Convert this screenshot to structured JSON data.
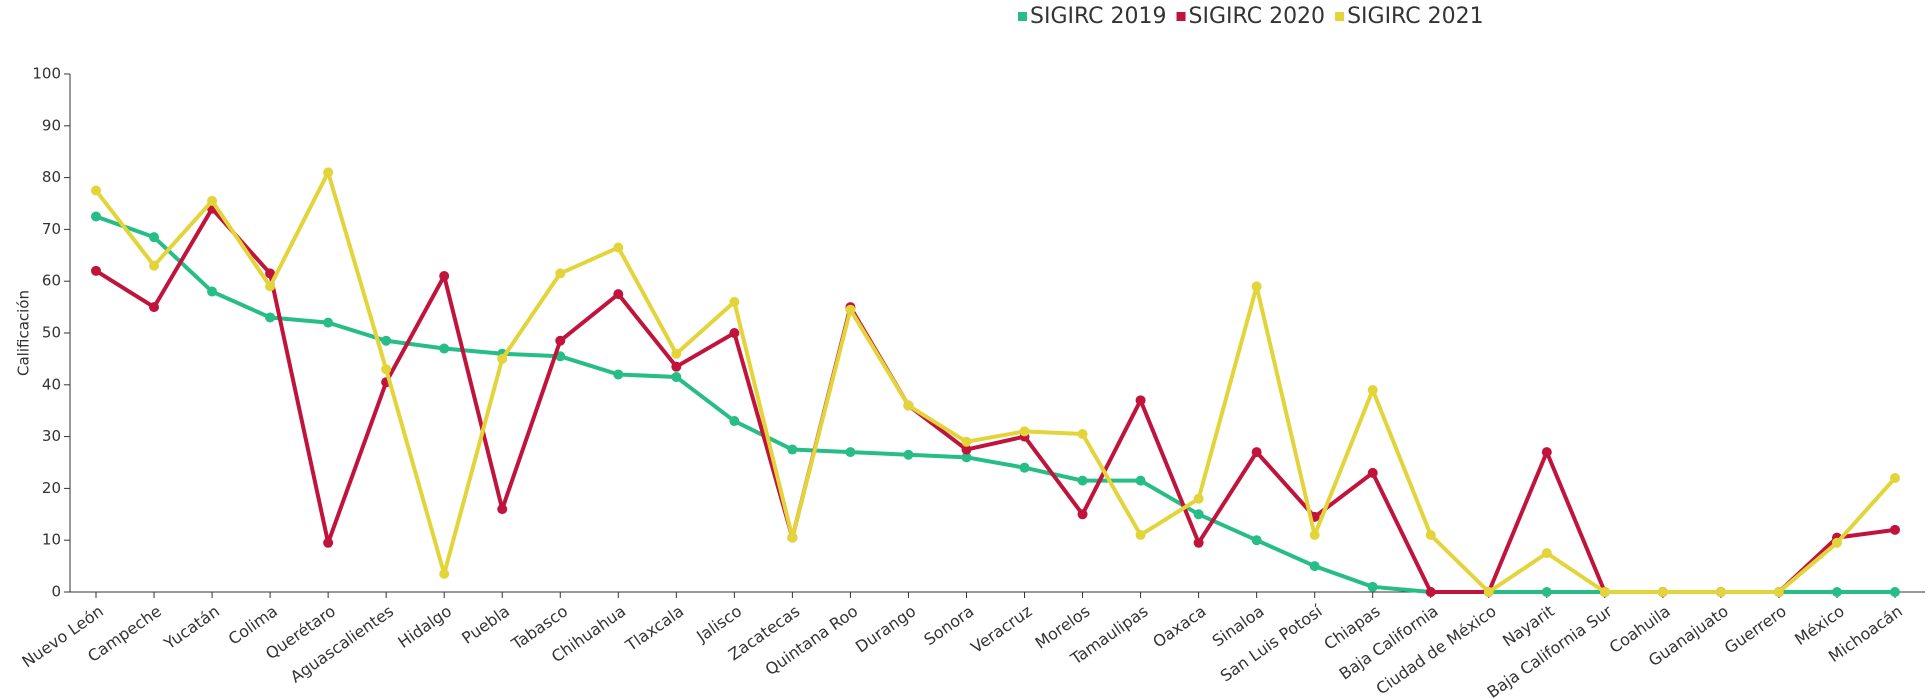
{
  "chart_data": {
    "type": "line",
    "y_label": "Calificación",
    "categories": [
      "Nuevo León",
      "Campeche",
      "Yucatán",
      "Colima",
      "Querétaro",
      "Aguascalientes",
      "Hidalgo",
      "Puebla",
      "Tabasco",
      "Chihuahua",
      "Tlaxcala",
      "Jalisco",
      "Zacatecas",
      "Quintana Roo",
      "Durango",
      "Sonora",
      "Veracruz",
      "Morelos",
      "Tamaulipas",
      "Oaxaca",
      "Sinaloa",
      "San Luis Potosí",
      "Chiapas",
      "Baja California",
      "Ciudad de México",
      "Nayarit",
      "Baja California Sur",
      "Coahuila",
      "Guanajuato",
      "Guerrero",
      "México",
      "Michoacán"
    ],
    "series": [
      {
        "name": "SIGIRC 2019",
        "color": "#26bd87",
        "values": [
          72.5,
          68.5,
          58,
          53,
          52,
          48.5,
          47,
          46,
          45.5,
          42,
          41.5,
          33,
          27.5,
          27,
          26.5,
          26,
          24,
          21.5,
          21.5,
          15,
          10,
          5,
          1,
          0,
          0,
          0,
          0,
          0,
          0,
          0,
          0,
          0
        ]
      },
      {
        "name": "SIGIRC 2020",
        "color": "#c0143c",
        "values": [
          62,
          55,
          74,
          61.5,
          9.5,
          40.5,
          61,
          16,
          48.5,
          57.5,
          43.5,
          50,
          10.5,
          55,
          36,
          27.5,
          30,
          15,
          37,
          9.5,
          27,
          14.5,
          23,
          0,
          0,
          27,
          0,
          0,
          0,
          0,
          10.5,
          12
        ]
      },
      {
        "name": "SIGIRC 2021",
        "color": "#e3d43a",
        "values": [
          77.5,
          63,
          75.5,
          59,
          81,
          43,
          3.5,
          45,
          61.5,
          66.5,
          46,
          56,
          10.5,
          54.5,
          36,
          29,
          31,
          30.5,
          11,
          18,
          59,
          11,
          39,
          11,
          0,
          7.5,
          0,
          0,
          0,
          0,
          9.5,
          22
        ]
      }
    ],
    "ylim": [
      0,
      100
    ],
    "yticks": [
      0,
      10,
      20,
      30,
      40,
      50,
      60,
      70,
      80,
      90,
      100
    ],
    "legend": "top"
  }
}
